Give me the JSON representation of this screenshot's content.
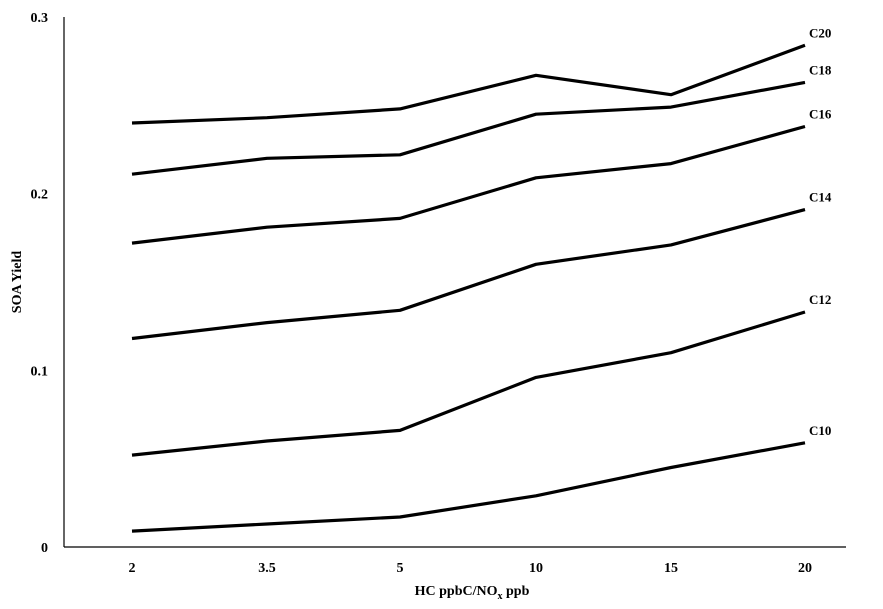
{
  "chart_data": {
    "type": "line",
    "categories": [
      "2",
      "3.5",
      "5",
      "10",
      "15",
      "20"
    ],
    "xlabel": "HC ppbC/NO",
    "xlabel_sub": "x",
    "xlabel_suffix": " ppb",
    "ylabel": "SOA Yield",
    "ylim": [
      0,
      0.3
    ],
    "yticks": [
      "0",
      "0.1",
      "0.2",
      "0.3"
    ],
    "grid": false,
    "legend": "labels at line ends",
    "series": [
      {
        "name": "C10",
        "values": [
          0.009,
          0.013,
          0.017,
          0.029,
          0.045,
          0.059
        ]
      },
      {
        "name": "C12",
        "values": [
          0.052,
          0.06,
          0.066,
          0.096,
          0.11,
          0.133
        ]
      },
      {
        "name": "C14",
        "values": [
          0.118,
          0.127,
          0.134,
          0.16,
          0.171,
          0.191
        ]
      },
      {
        "name": "C16",
        "values": [
          0.172,
          0.181,
          0.186,
          0.209,
          0.217,
          0.238
        ]
      },
      {
        "name": "C18",
        "values": [
          0.211,
          0.22,
          0.222,
          0.245,
          0.249,
          0.263
        ]
      },
      {
        "name": "C20",
        "values": [
          0.24,
          0.243,
          0.248,
          0.267,
          0.256,
          0.284
        ]
      }
    ]
  }
}
